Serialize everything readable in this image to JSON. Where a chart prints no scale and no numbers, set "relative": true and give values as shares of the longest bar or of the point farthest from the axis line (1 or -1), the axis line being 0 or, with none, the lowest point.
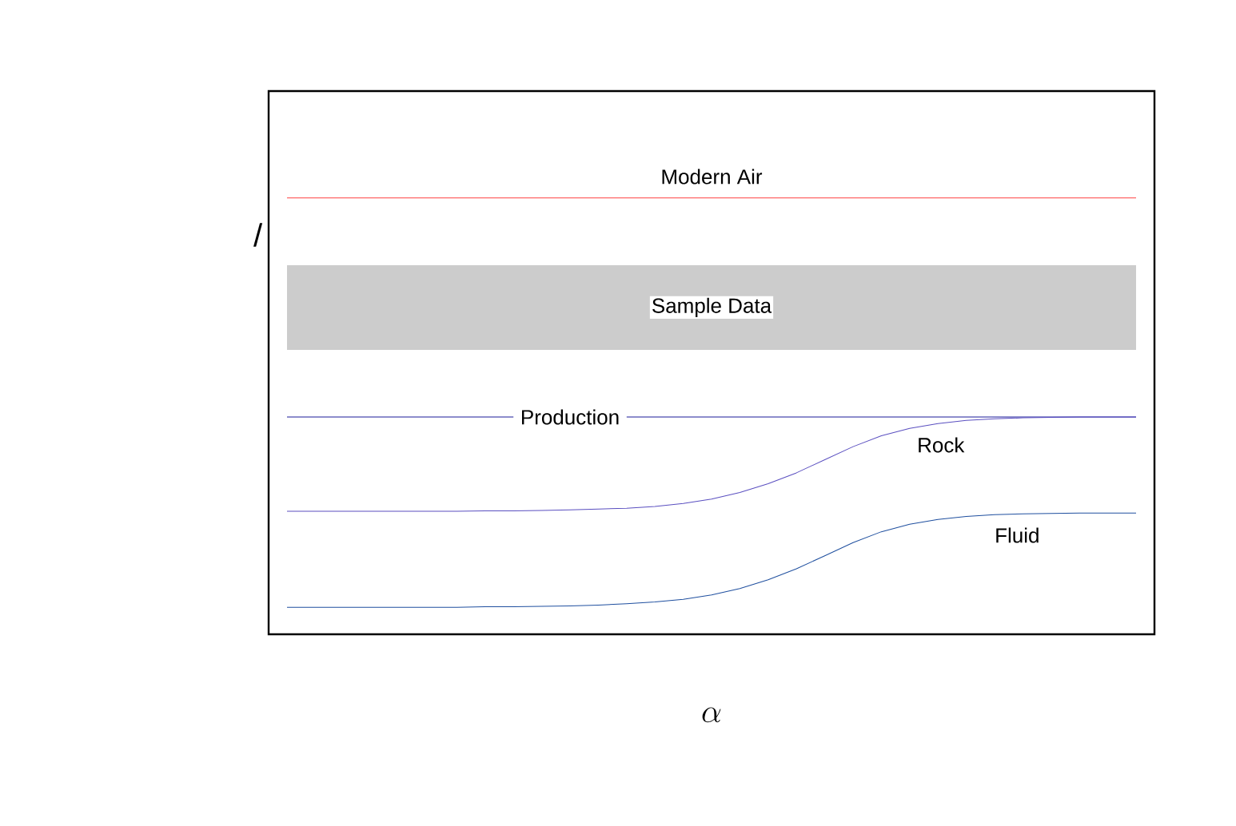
{
  "chart_data": {
    "type": "line",
    "relative": true,
    "xlabel": "\\alpha",
    "ylabel": "/",
    "categories": [
      null,
      null,
      null,
      null,
      null,
      null,
      null,
      null,
      null,
      null,
      null,
      null,
      null,
      null,
      null,
      null,
      null,
      null,
      null,
      null,
      null,
      null,
      null,
      null,
      null,
      null,
      null,
      null,
      null,
      null,
      null
    ],
    "series": [
      {
        "name": "Modern Air",
        "color": "#ff4040",
        "values": [
          1,
          1,
          1,
          1,
          1,
          1,
          1,
          1,
          1,
          1,
          1,
          1,
          1,
          1,
          1,
          1,
          1,
          1,
          1,
          1,
          1,
          1,
          1,
          1,
          1,
          1,
          1,
          1,
          1,
          1,
          1
        ]
      },
      {
        "name": "Production",
        "color": "#1a1a9a",
        "values": [
          0.498,
          0.498,
          0.498,
          0.498,
          0.498,
          0.498,
          0.498,
          0.498,
          0.498,
          null,
          null,
          null,
          0.498,
          0.498,
          0.498,
          0.498,
          0.498,
          0.498,
          0.498,
          0.498,
          0.498,
          0.498,
          0.498,
          0.498,
          0.498,
          0.498,
          0.498,
          0.498,
          0.498,
          0.498,
          0.498
        ]
      },
      {
        "name": "Rock",
        "color": "#5a4fc0",
        "values": [
          0.282,
          0.282,
          0.282,
          0.282,
          0.282,
          0.282,
          0.282,
          0.283,
          0.283,
          0.284,
          0.285,
          0.287,
          0.289,
          0.293,
          0.3,
          0.31,
          0.325,
          0.345,
          0.37,
          0.4,
          0.43,
          0.455,
          0.472,
          0.483,
          0.49,
          0.494,
          0.496,
          0.497,
          0.498,
          0.498,
          0.498
        ]
      },
      {
        "name": "Fluid",
        "color": "#1f4f9f",
        "values": [
          0.062,
          0.062,
          0.062,
          0.062,
          0.062,
          0.062,
          0.062,
          0.063,
          0.063,
          0.064,
          0.065,
          0.067,
          0.07,
          0.074,
          0.08,
          0.09,
          0.105,
          0.125,
          0.15,
          0.18,
          0.21,
          0.235,
          0.252,
          0.263,
          0.27,
          0.274,
          0.276,
          0.277,
          0.278,
          0.278,
          0.278
        ]
      }
    ],
    "bands": [
      {
        "axis": "y",
        "from": 0.652,
        "to": 0.846,
        "label": "Sample Data",
        "color": "#cccccc"
      }
    ]
  }
}
